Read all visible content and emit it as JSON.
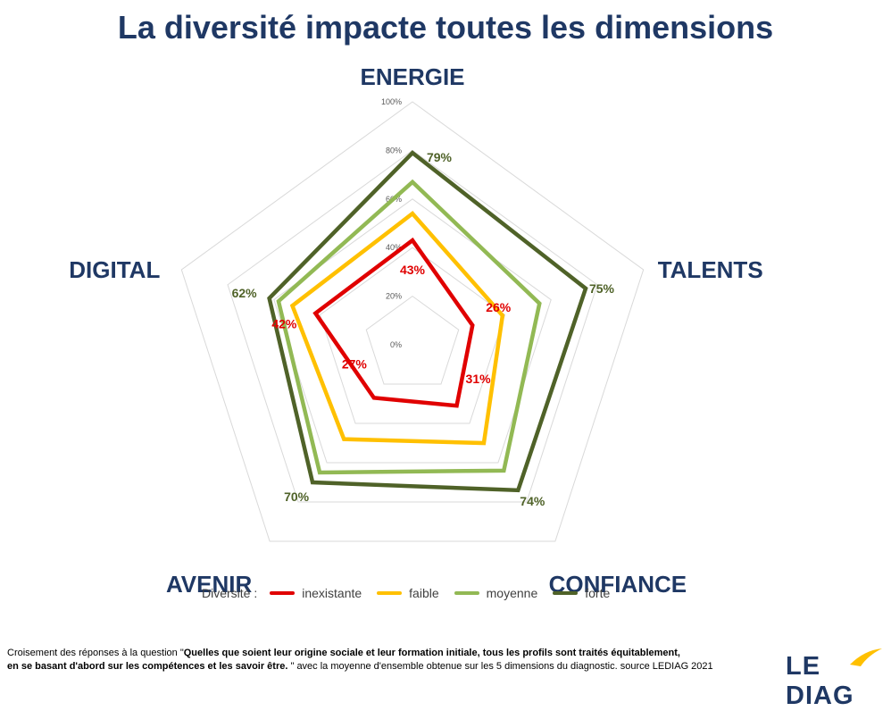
{
  "title": "La diversité impacte toutes les dimensions",
  "chart_data": {
    "type": "radar",
    "axes": [
      "ENERGIE",
      "TALENTS",
      "CONFIANCE",
      "AVENIR",
      "DIGITAL"
    ],
    "ticks": [
      "0%",
      "20%",
      "40%",
      "60%",
      "80%",
      "100%"
    ],
    "rmax": 100,
    "series": [
      {
        "name": "inexistante",
        "color": "#e00000",
        "values": [
          43,
          26,
          31,
          27,
          42
        ],
        "labels": [
          "43%",
          "26%",
          "31%",
          "27%",
          "42%"
        ]
      },
      {
        "name": "faible",
        "color": "#ffc000",
        "values": [
          54,
          39,
          50,
          48,
          52
        ],
        "labels": []
      },
      {
        "name": "moyenne",
        "color": "#92b954",
        "values": [
          67,
          55,
          64,
          65,
          58
        ],
        "labels": []
      },
      {
        "name": "forte",
        "color": "#4f6228",
        "values": [
          79,
          75,
          74,
          70,
          62
        ],
        "labels": [
          "79%",
          "75%",
          "74%",
          "70%",
          "62%"
        ]
      }
    ],
    "legend_title": "Diversité :",
    "legend_position": "bottom"
  },
  "footnote": {
    "line1_prefix": "Croisement des réponses à la question \"",
    "line1_bold": "Quelles que soient leur origine sociale et leur formation initiale, tous les profils sont traités équitablement,",
    "line2_bold": "en se  basant d'abord sur les compétences et les savoir être.",
    "line2_suffix": " \" avec la moyenne d'ensemble obtenue sur les 5 dimensions du diagnostic. source LEDIAG 2021"
  },
  "logo": {
    "text": "LE DIAG",
    "color": "#1f3864",
    "accent": "#ffc000"
  }
}
